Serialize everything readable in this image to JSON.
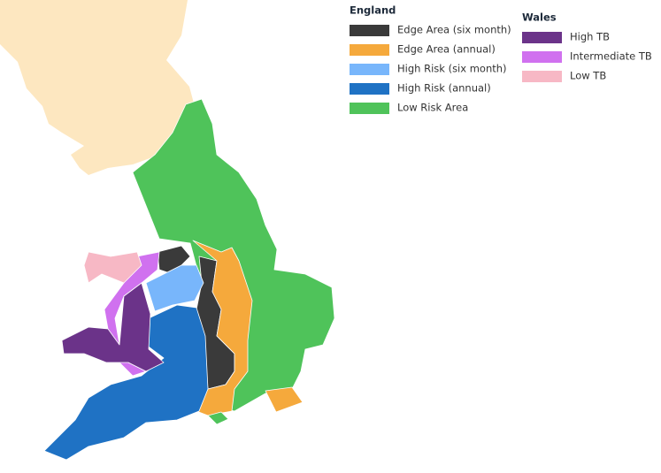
{
  "legend": [
    {
      "title": "England",
      "items": [
        {
          "label": "Edge Area (six month)",
          "color": "#3a3a3a"
        },
        {
          "label": "Edge Area (annual)",
          "color": "#f5a93c"
        },
        {
          "label": "High Risk (six month)",
          "color": "#78b6fb"
        },
        {
          "label": "High Risk (annual)",
          "color": "#1f72c4"
        },
        {
          "label": "Low Risk Area",
          "color": "#4fc35a"
        }
      ]
    },
    {
      "title": "Wales",
      "items": [
        {
          "label": "High TB",
          "color": "#6b3389"
        },
        {
          "label": "Intermediate TB",
          "color": "#d071ef"
        },
        {
          "label": "Low TB",
          "color": "#f7b8c5"
        }
      ]
    }
  ]
}
